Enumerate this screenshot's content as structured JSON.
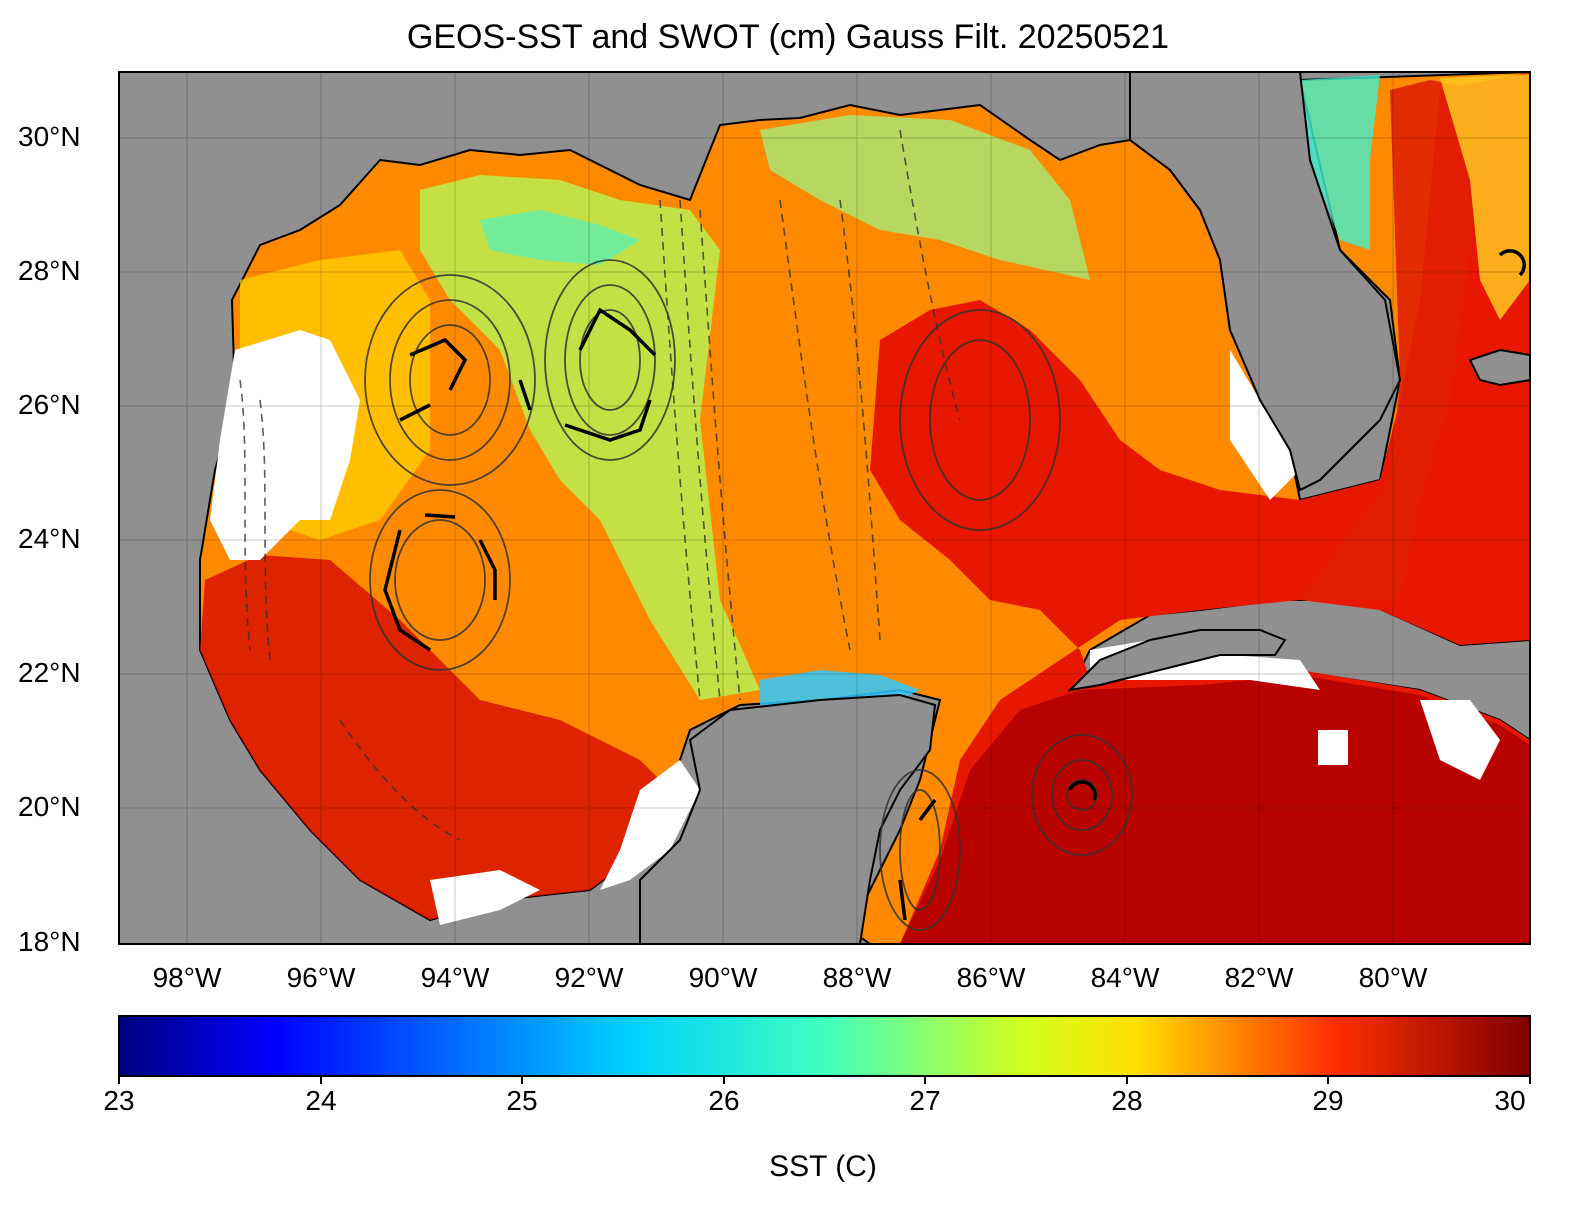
{
  "title": "GEOS-SST  and SWOT (cm) Gauss Filt. 20250521",
  "map": {
    "lat_labels": [
      "30°N",
      "28°N",
      "26°N",
      "24°N",
      "22°N",
      "20°N",
      "18°N"
    ],
    "lon_labels": [
      "98°W",
      "96°W",
      "94°W",
      "92°W",
      "90°W",
      "88°W",
      "86°W",
      "84°W",
      "82°W",
      "80°W"
    ],
    "land_color": "#909090",
    "nodata_color": "#ffffff"
  },
  "colorbar": {
    "ticks": [
      "23",
      "24",
      "25",
      "26",
      "27",
      "28",
      "29",
      "30"
    ],
    "label": "SST (C)",
    "colormap": [
      "#00007f",
      "#0000ff",
      "#007fff",
      "#00ffff",
      "#7fff7f",
      "#ffff00",
      "#ff7f00",
      "#ff0000",
      "#7f0000"
    ]
  }
}
